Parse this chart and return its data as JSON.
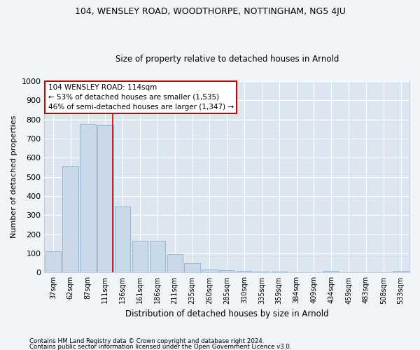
{
  "title1": "104, WENSLEY ROAD, WOODTHORPE, NOTTINGHAM, NG5 4JU",
  "title2": "Size of property relative to detached houses in Arnold",
  "xlabel": "Distribution of detached houses by size in Arnold",
  "ylabel": "Number of detached properties",
  "categories": [
    "37sqm",
    "62sqm",
    "87sqm",
    "111sqm",
    "136sqm",
    "161sqm",
    "186sqm",
    "211sqm",
    "235sqm",
    "260sqm",
    "285sqm",
    "310sqm",
    "335sqm",
    "359sqm",
    "384sqm",
    "409sqm",
    "434sqm",
    "459sqm",
    "483sqm",
    "508sqm",
    "533sqm"
  ],
  "values": [
    110,
    558,
    778,
    770,
    345,
    165,
    165,
    95,
    50,
    17,
    12,
    9,
    5,
    5,
    2,
    0,
    8,
    2,
    2,
    0,
    8
  ],
  "bar_color": "#c9d9ea",
  "bar_edge_color": "#8ab0cc",
  "plot_bg_color": "#dce6f0",
  "fig_bg_color": "#f0f4f8",
  "grid_color": "#ffffff",
  "annotation_text_line1": "104 WENSLEY ROAD: 114sqm",
  "annotation_text_line2": "← 53% of detached houses are smaller (1,535)",
  "annotation_text_line3": "46% of semi-detached houses are larger (1,347) →",
  "annotation_box_facecolor": "#ffffff",
  "annotation_box_edgecolor": "#cc0000",
  "red_line_x": 3.42,
  "ylim": [
    0,
    1000
  ],
  "yticks": [
    0,
    100,
    200,
    300,
    400,
    500,
    600,
    700,
    800,
    900,
    1000
  ],
  "footer1": "Contains HM Land Registry data © Crown copyright and database right 2024.",
  "footer2": "Contains public sector information licensed under the Open Government Licence v3.0."
}
